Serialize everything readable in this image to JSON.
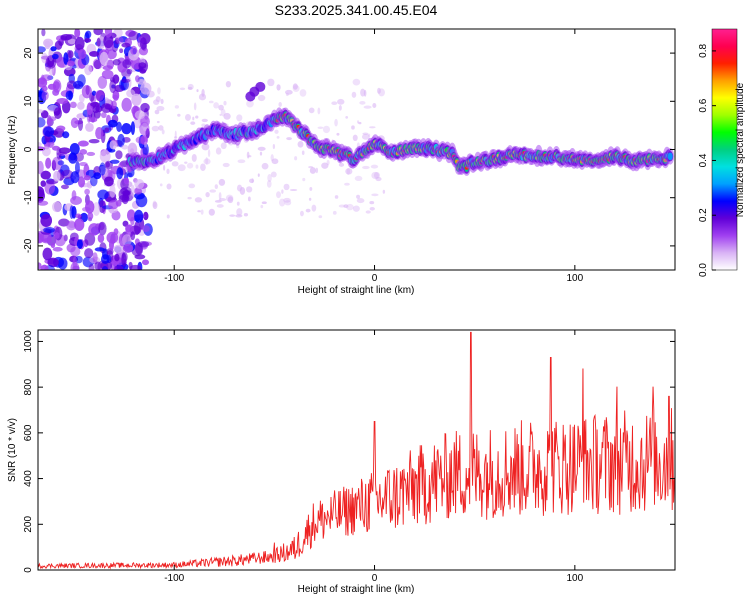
{
  "figure": {
    "title": "S233.2025.341.00.45.E04"
  },
  "chart_data": [
    {
      "type": "heatmap",
      "title": "S233.2025.341.00.45.E04",
      "xlabel": "Height of straight line (km)",
      "ylabel": "Frequency (Hz)",
      "xlim": [
        -168,
        150
      ],
      "ylim": [
        -25,
        25
      ],
      "xticks": [
        -100,
        0,
        100
      ],
      "yticks": [
        -20,
        -10,
        0,
        10,
        20
      ],
      "colorbar": {
        "label": "Normalized spectral amplitude",
        "range": [
          0.0,
          0.88
        ],
        "ticks": [
          0.0,
          0.2,
          0.4,
          0.6,
          0.8
        ],
        "colormap": [
          "#ffffff",
          "#d9b3f5",
          "#a040f0",
          "#6000d8",
          "#0000ff",
          "#00a0ff",
          "#00e0e0",
          "#00d080",
          "#00ff00",
          "#a0ff00",
          "#ffff00",
          "#ffa000",
          "#ff2000",
          "#ff0050",
          "#ff2090"
        ]
      },
      "ridge": {
        "description_points_x": [
          -122,
          -110,
          -100,
          -90,
          -80,
          -70,
          -60,
          -50,
          -45,
          -40,
          -30,
          -20,
          -10,
          0,
          10,
          20,
          30,
          40,
          42,
          50,
          60,
          70,
          80,
          90,
          100,
          110,
          120,
          130,
          140,
          148
        ],
        "description_points_y": [
          -2.5,
          -2,
          0,
          2,
          4,
          3,
          4,
          6,
          7,
          5,
          1,
          -0.5,
          -2,
          1,
          -0.5,
          0.5,
          0,
          -1,
          -4,
          -2.5,
          -2,
          -1,
          -1.5,
          -1.5,
          -2,
          -2,
          -1.5,
          -2.5,
          -2,
          -1.5
        ]
      }
    },
    {
      "type": "line",
      "xlabel": "Height of straight line (km)",
      "ylabel": "SNR (10 * v/v)",
      "xlim": [
        -168,
        150
      ],
      "ylim": [
        0,
        1050
      ],
      "xticks": [
        -100,
        0,
        100
      ],
      "yticks": [
        0,
        200,
        400,
        600,
        800,
        1000
      ],
      "series": [
        {
          "name": "SNR",
          "color": "#ee2222",
          "envelope_x": [
            -168,
            -100,
            -70,
            -50,
            -40,
            -30,
            -20,
            -10,
            0,
            10,
            20,
            40,
            60,
            80,
            100,
            120,
            150
          ],
          "envelope_mean": [
            18,
            22,
            40,
            60,
            90,
            210,
            240,
            270,
            300,
            320,
            360,
            420,
            430,
            450,
            460,
            470,
            480
          ],
          "envelope_amplitude": [
            10,
            12,
            25,
            30,
            60,
            100,
            110,
            120,
            150,
            160,
            180,
            200,
            210,
            220,
            220,
            230,
            240
          ],
          "peaks": [
            [
              -50,
              120
            ],
            [
              0,
              650
            ],
            [
              48,
              1040
            ],
            [
              88,
              930
            ],
            [
              104,
              880
            ],
            [
              121,
              800
            ],
            [
              139,
              800
            ],
            [
              147,
              760
            ]
          ]
        }
      ]
    }
  ]
}
